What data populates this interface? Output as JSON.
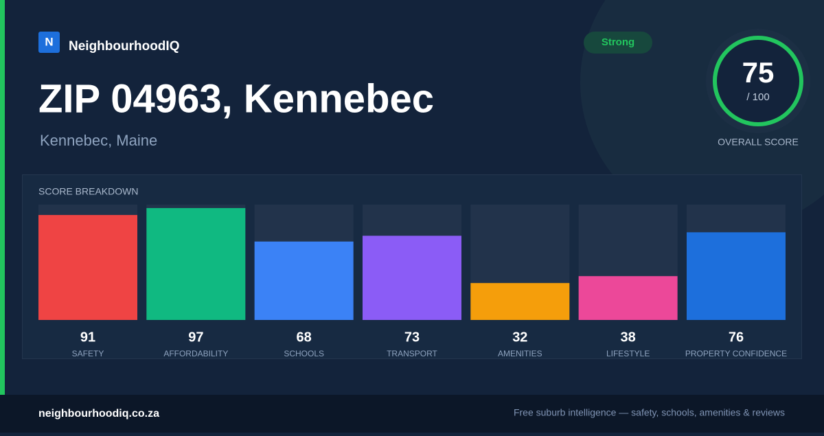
{
  "brand": {
    "logo_letter": "N",
    "name": "NeighbourhoodIQ"
  },
  "title": "ZIP 04963, Kennebec",
  "subtitle": "Kennebec, Maine",
  "badge": "Strong",
  "overall": {
    "score": 75,
    "suffix": "/ 100",
    "label": "OVERALL SCORE"
  },
  "chart_data": {
    "type": "bar",
    "title": "SCORE BREAKDOWN",
    "categories": [
      "SAFETY",
      "AFFORDABILITY",
      "SCHOOLS",
      "TRANSPORT",
      "AMENITIES",
      "LIFESTYLE",
      "PROPERTY CONFIDENCE"
    ],
    "values": [
      91,
      97,
      68,
      73,
      32,
      38,
      76
    ],
    "colors": [
      "#ef4444",
      "#10b981",
      "#3b82f6",
      "#8b5cf6",
      "#f59e0b",
      "#ec4899",
      "#1d6fdc"
    ],
    "ylim": [
      0,
      100
    ]
  },
  "footer": {
    "site": "neighbourhoodiq.co.za",
    "tagline": "Free suburb intelligence — safety, schools, amenities & reviews"
  }
}
